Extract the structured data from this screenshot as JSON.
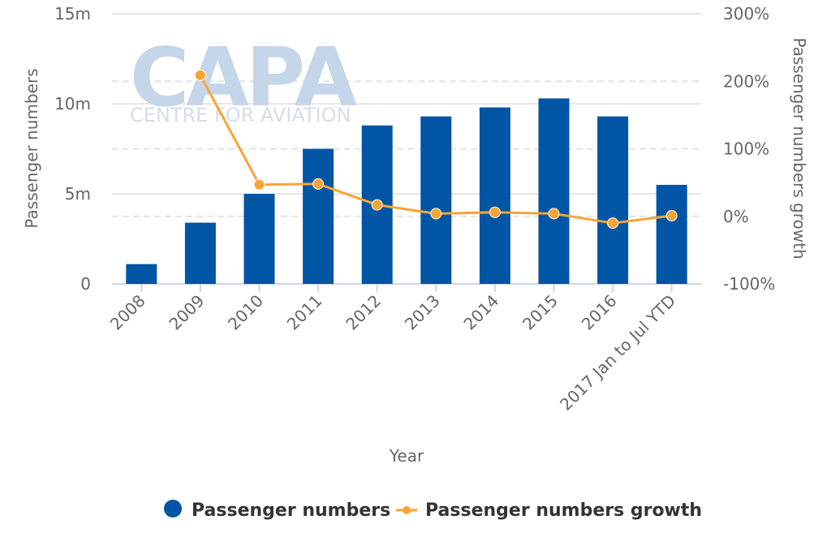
{
  "watermark": {
    "brand": "CAPA",
    "tagline": "CENTRE FOR AVIATION"
  },
  "chart_data": {
    "type": "bar",
    "categories": [
      "2008",
      "2009",
      "2010",
      "2011",
      "2012",
      "2013",
      "2014",
      "2015",
      "2016",
      "2017 Jan to Jul YTD"
    ],
    "series": [
      {
        "name": "Passenger numbers",
        "type": "bar",
        "axis": "left",
        "color": "#0055a5",
        "values": [
          1.1,
          3.4,
          5.0,
          7.5,
          8.8,
          9.3,
          9.8,
          10.3,
          9.3,
          5.5
        ]
      },
      {
        "name": "Passenger numbers growth",
        "type": "line",
        "axis": "right",
        "color": "#f7a535",
        "values": [
          null,
          209,
          47,
          48,
          17,
          4,
          6,
          4,
          -10,
          1
        ]
      }
    ],
    "xlabel": "Year",
    "ylabel": "Passenger numbers",
    "y2label": "Passenger numbers growth",
    "ylim": [
      0,
      15
    ],
    "y2lim": [
      -100,
      300
    ],
    "yticks": [
      "0",
      "5m",
      "10m",
      "15m"
    ],
    "ytick_values": [
      0,
      5,
      10,
      15
    ],
    "y2ticks": [
      "-100%",
      "0%",
      "100%",
      "200%",
      "300%"
    ],
    "y2tick_values": [
      -100,
      0,
      100,
      200,
      300
    ],
    "grid": true,
    "legend_position": "bottom-center"
  }
}
